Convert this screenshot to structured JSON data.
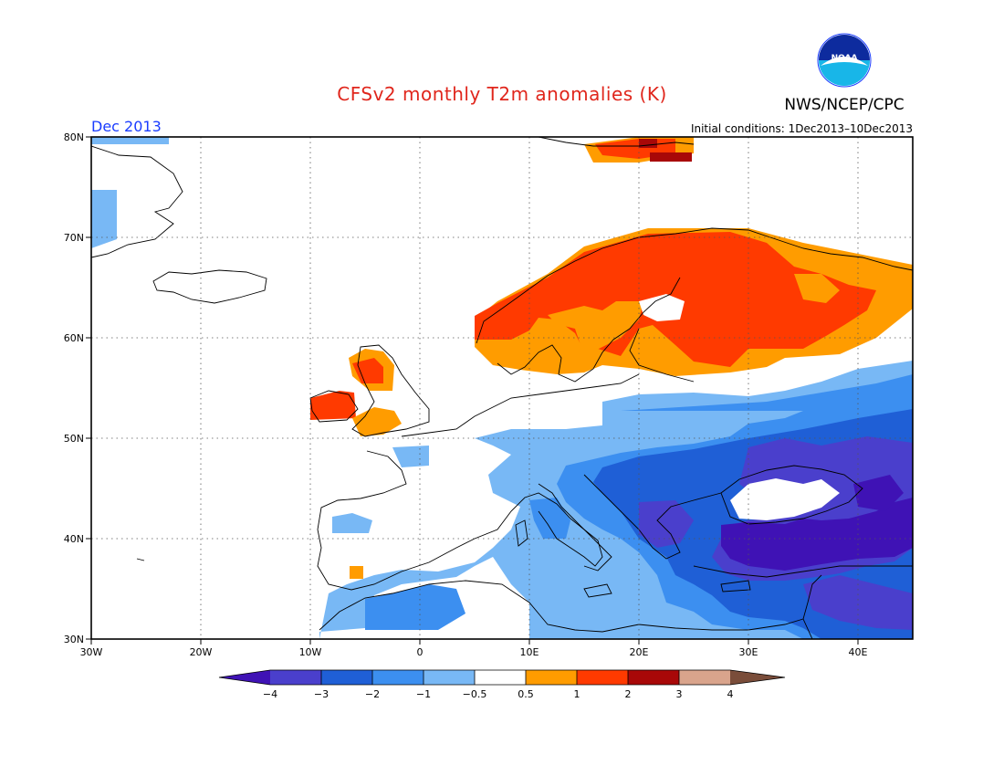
{
  "title": "CFSv2 monthly T2m anomalies (K)",
  "period_label": "Dec 2013",
  "agency_label": "NWS/NCEP/CPC",
  "logo_text": "NOAA",
  "initial_conditions": "Initial conditions: 1Dec2013–10Dec2013",
  "lat_labels": [
    "80N",
    "70N",
    "60N",
    "50N",
    "40N",
    "30N"
  ],
  "lon_labels": [
    "30W",
    "20W",
    "10W",
    "0",
    "10E",
    "20E",
    "30E",
    "40E"
  ],
  "map_extent": {
    "lon": [
      -30,
      45
    ],
    "lat": [
      30,
      80
    ]
  },
  "colorbar": {
    "labels": [
      "−4",
      "−3",
      "−2",
      "−1",
      "−0.5",
      "0.5",
      "1",
      "2",
      "3",
      "4"
    ],
    "colors": [
      "#3f12b5",
      "#4a3fcc",
      "#1f5fd6",
      "#3c8ff0",
      "#78b8f5",
      "#ffffff",
      "#ff9c00",
      "#ff3a00",
      "#a80808",
      "#d9a48c",
      "#7a4d3a"
    ]
  },
  "colors": {
    "title": "#e0261c",
    "period": "#1a3cff"
  }
}
